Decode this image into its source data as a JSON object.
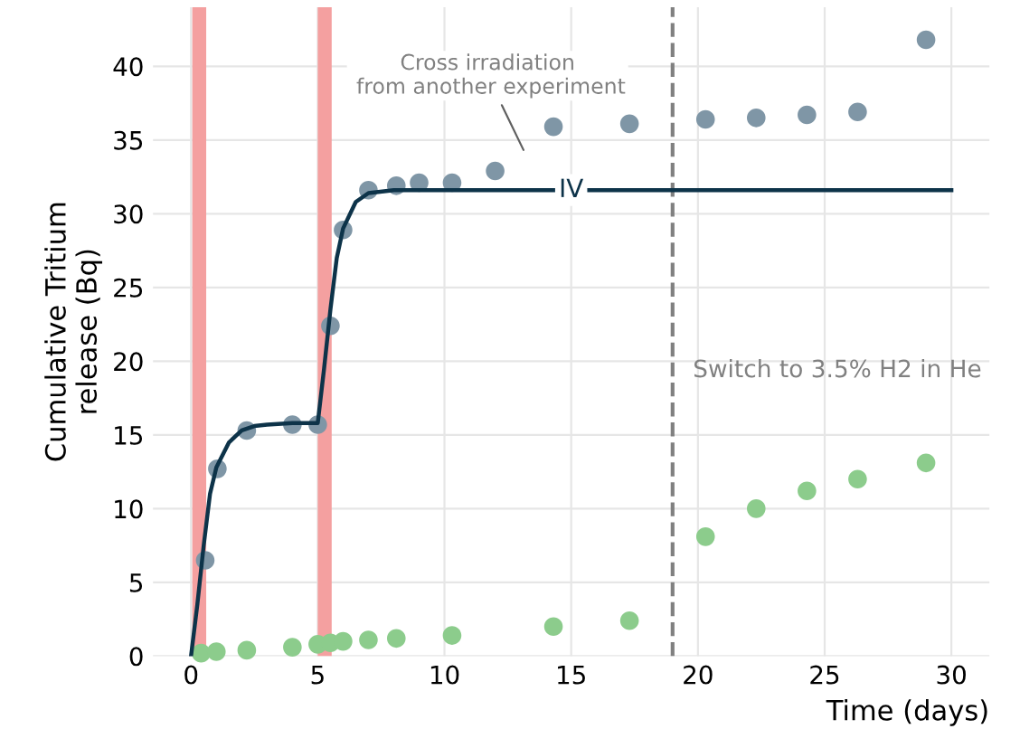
{
  "chart_data": {
    "type": "scatter",
    "xlabel": "Time (days)",
    "ylabel": "Cumulative Tritium\nrelease (Bq)",
    "xlim": [
      -1.5,
      31.5
    ],
    "ylim": [
      0,
      44
    ],
    "xticks": [
      0,
      5,
      10,
      15,
      20,
      25,
      30
    ],
    "yticks": [
      0,
      5,
      10,
      15,
      20,
      25,
      30,
      35,
      40
    ],
    "grid": true,
    "marker": "circle",
    "series": [
      {
        "color": "#7f96a6",
        "x": [
          0.56,
          1.04,
          2.2,
          4.0,
          5.0,
          5.5,
          6.0,
          7.0,
          8.1,
          9.0,
          10.3,
          12.0,
          14.3,
          17.3,
          20.3,
          22.3,
          24.3,
          26.3,
          29.0
        ],
        "values": [
          6.5,
          12.7,
          15.3,
          15.7,
          15.7,
          22.4,
          28.9,
          31.6,
          31.9,
          32.1,
          32.1,
          32.9,
          35.9,
          36.1,
          36.4,
          36.5,
          36.7,
          36.9,
          41.8
        ]
      },
      {
        "color": "#8ccc8c",
        "x": [
          0.4,
          1.0,
          2.2,
          4.0,
          5.0,
          5.5,
          6.0,
          7.0,
          8.1,
          10.3,
          14.3,
          17.3,
          20.3,
          22.3,
          24.3,
          26.3,
          29.0
        ],
        "values": [
          0.2,
          0.3,
          0.4,
          0.6,
          0.8,
          0.9,
          1.0,
          1.1,
          1.2,
          1.4,
          2.0,
          2.4,
          8.1,
          10.0,
          11.2,
          12.0,
          13.1
        ]
      },
      {
        "type": "line",
        "name": "IV",
        "color": "#0d3349",
        "marker": "none",
        "line_style": "solid",
        "x": [
          0,
          0.25,
          0.5,
          0.75,
          1,
          1.5,
          2,
          2.5,
          3,
          4,
          5,
          5.25,
          5.5,
          5.75,
          6,
          6.5,
          7,
          8,
          10,
          15,
          20,
          30
        ],
        "values": [
          0,
          3.5,
          7.5,
          11,
          12.8,
          14.5,
          15.3,
          15.6,
          15.7,
          15.8,
          15.8,
          19.5,
          23.5,
          27,
          29,
          30.8,
          31.4,
          31.6,
          31.6,
          31.6,
          31.6,
          31.6
        ]
      }
    ],
    "bands": [
      {
        "axis": "x",
        "from": 0.05,
        "to": 0.6,
        "color": "#f4a0a0"
      },
      {
        "axis": "x",
        "from": 5.0,
        "to": 5.55,
        "color": "#f4a0a0"
      }
    ],
    "ref_lines": [
      {
        "axis": "x",
        "value": 19,
        "label": "Switch to 3.5% H2 in He",
        "color": "#808080",
        "line_style": "dashed"
      }
    ],
    "annotations": [
      "Cross irradiation\n from another experiment"
    ]
  }
}
